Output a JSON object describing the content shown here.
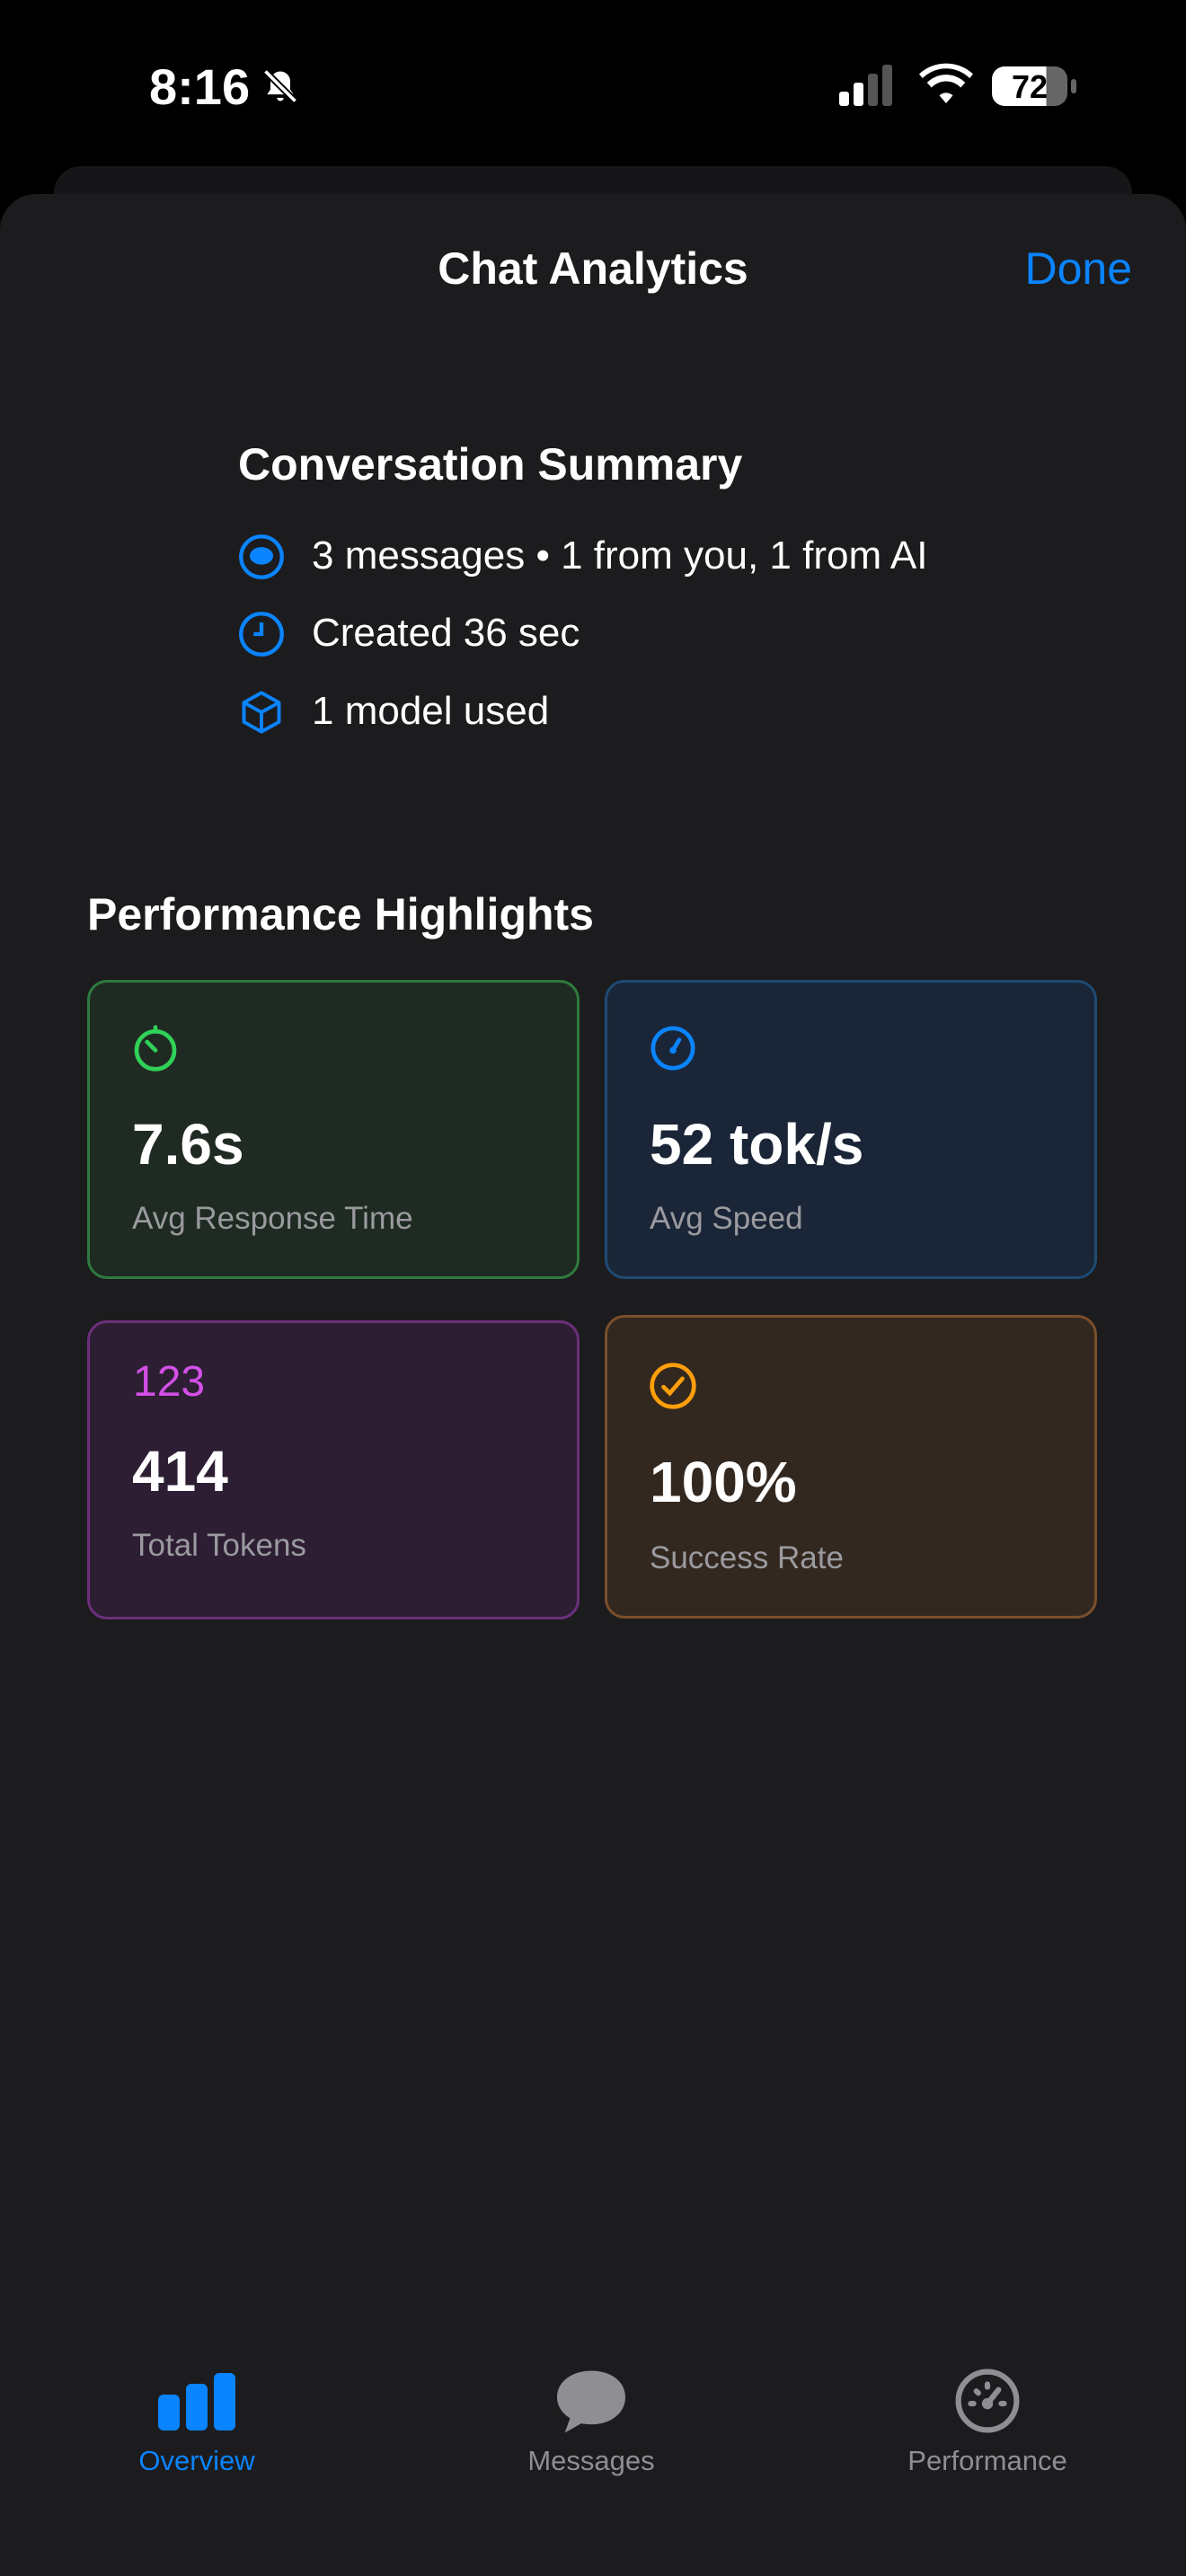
{
  "status_bar": {
    "time": "8:16",
    "battery": "72"
  },
  "header": {
    "title": "Chat Analytics",
    "done": "Done"
  },
  "summary": {
    "title": "Conversation Summary",
    "items": [
      "3 messages • 1 from you, 1 from AI",
      "Created 36 sec",
      "1 model used"
    ]
  },
  "highlights": {
    "title": "Performance Highlights",
    "cards": [
      {
        "value": "7.6s",
        "label": "Avg Response Time"
      },
      {
        "value": "52 tok/s",
        "label": "Avg Speed"
      },
      {
        "icon_text": "123",
        "value": "414",
        "label": "Total Tokens"
      },
      {
        "value": "100%",
        "label": "Success Rate"
      }
    ]
  },
  "tabs": [
    "Overview",
    "Messages",
    "Performance"
  ]
}
